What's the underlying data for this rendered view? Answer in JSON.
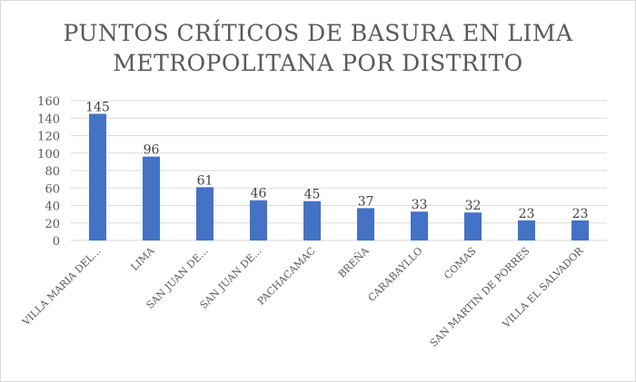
{
  "chart_data": {
    "type": "bar",
    "title_lines": [
      "PUNTOS CRÍTICOS DE BASURA EN LIMA",
      "METROPOLITANA POR DISTRITO"
    ],
    "categories": [
      "VILLA MARIA DEL...",
      "LIMA",
      "SAN JUAN DE...",
      "SAN JUAN DE...",
      "PACHACAMAC",
      "BREÑA",
      "CARABAYLLO",
      "COMAS",
      "SAN MARTIN DE PORRES",
      "VILLA EL SALVADOR"
    ],
    "values": [
      145,
      96,
      61,
      46,
      45,
      37,
      33,
      32,
      23,
      23
    ],
    "yticks": [
      "0",
      "20",
      "40",
      "60",
      "80",
      "100",
      "120",
      "140",
      "160"
    ],
    "ylim": [
      0,
      160
    ],
    "grid": true,
    "legend": "none",
    "bar_color": "#4472c4",
    "grid_color": "#d9d9d9"
  }
}
